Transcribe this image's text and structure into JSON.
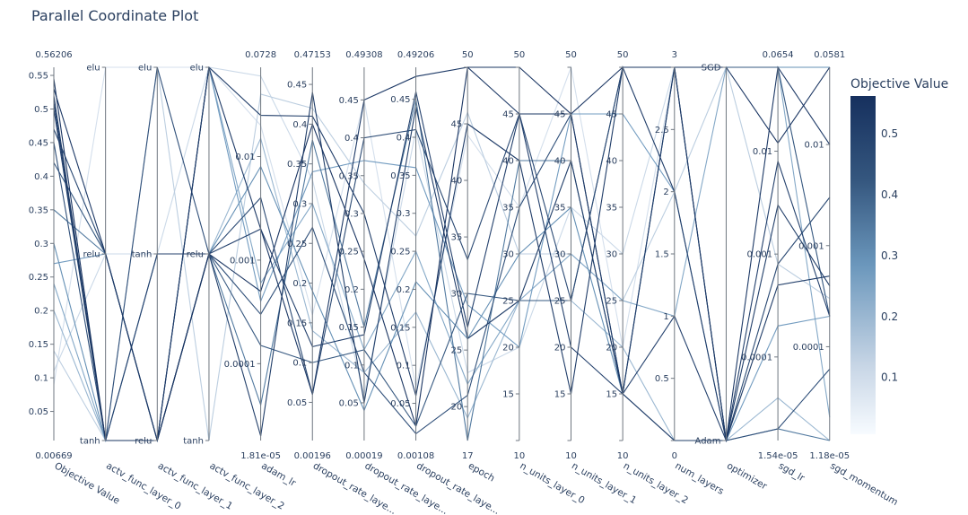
{
  "chart_data": {
    "type": "parallel_coordinates",
    "title": "Parallel Coordinate Plot",
    "colorbar": {
      "title": "Objective Value",
      "range": [
        0.00669,
        0.56206
      ],
      "ticks": [
        "0.1",
        "0.2",
        "0.3",
        "0.4",
        "0.5"
      ],
      "tick_values": [
        0.1,
        0.2,
        0.3,
        0.4,
        0.5
      ],
      "colors": [
        "#f7fbff",
        "#c8d6e6",
        "#6b97bc",
        "#35577f",
        "#16305e"
      ]
    },
    "axes": [
      {
        "label": "Objective Value",
        "kind": "linear",
        "min": 0.00669,
        "max": 0.56206,
        "min_label": "0.00669",
        "max_label": "0.56206",
        "ticks": [
          [
            0.05,
            "0.05"
          ],
          [
            0.1,
            "0.1"
          ],
          [
            0.15,
            "0.15"
          ],
          [
            0.2,
            "0.2"
          ],
          [
            0.25,
            "0.25"
          ],
          [
            0.3,
            "0.3"
          ],
          [
            0.35,
            "0.35"
          ],
          [
            0.4,
            "0.4"
          ],
          [
            0.45,
            "0.45"
          ],
          [
            0.5,
            "0.5"
          ],
          [
            0.55,
            "0.55"
          ]
        ]
      },
      {
        "label": "actv_func_layer_0",
        "kind": "categorical",
        "min": 0,
        "max": 2,
        "ticks": [
          [
            0,
            "tanh"
          ],
          [
            1,
            "relu"
          ],
          [
            2,
            "elu"
          ]
        ]
      },
      {
        "label": "actv_func_layer_1",
        "kind": "categorical",
        "min": 0,
        "max": 2,
        "ticks": [
          [
            0,
            "relu"
          ],
          [
            1,
            "tanh"
          ],
          [
            2,
            "elu"
          ]
        ]
      },
      {
        "label": "actv_func_layer_2",
        "kind": "categorical",
        "min": 0,
        "max": 2,
        "ticks": [
          [
            0,
            "tanh"
          ],
          [
            1,
            "relu"
          ],
          [
            2,
            "elu"
          ]
        ]
      },
      {
        "label": "adam_lr",
        "kind": "log",
        "min": 1.81e-05,
        "max": 0.0728,
        "min_label": "1.81e-05",
        "max_label": "0.0728",
        "ticks": [
          [
            0.0001,
            "0.0001"
          ],
          [
            0.001,
            "0.001"
          ],
          [
            0.01,
            "0.01"
          ]
        ]
      },
      {
        "label": "dropout_rate_laye...",
        "kind": "linear",
        "min": 0.00196,
        "max": 0.47153,
        "min_label": "0.00196",
        "max_label": "0.47153",
        "ticks": [
          [
            0.05,
            "0.05"
          ],
          [
            0.1,
            "0.1"
          ],
          [
            0.15,
            "0.15"
          ],
          [
            0.2,
            "0.2"
          ],
          [
            0.25,
            "0.25"
          ],
          [
            0.3,
            "0.3"
          ],
          [
            0.35,
            "0.35"
          ],
          [
            0.4,
            "0.4"
          ],
          [
            0.45,
            "0.45"
          ]
        ]
      },
      {
        "label": "dropout_rate_laye...",
        "kind": "linear",
        "min": 0.00019,
        "max": 0.49308,
        "min_label": "0.00019",
        "max_label": "0.49308",
        "ticks": [
          [
            0.05,
            "0.05"
          ],
          [
            0.1,
            "0.1"
          ],
          [
            0.15,
            "0.15"
          ],
          [
            0.2,
            "0.2"
          ],
          [
            0.25,
            "0.25"
          ],
          [
            0.3,
            "0.3"
          ],
          [
            0.35,
            "0.35"
          ],
          [
            0.4,
            "0.4"
          ],
          [
            0.45,
            "0.45"
          ]
        ]
      },
      {
        "label": "dropout_rate_laye...",
        "kind": "linear",
        "min": 0.00108,
        "max": 0.49206,
        "min_label": "0.00108",
        "max_label": "0.49206",
        "ticks": [
          [
            0.05,
            "0.05"
          ],
          [
            0.1,
            "0.1"
          ],
          [
            0.15,
            "0.15"
          ],
          [
            0.2,
            "0.2"
          ],
          [
            0.25,
            "0.25"
          ],
          [
            0.3,
            "0.3"
          ],
          [
            0.35,
            "0.35"
          ],
          [
            0.4,
            "0.4"
          ],
          [
            0.45,
            "0.45"
          ]
        ]
      },
      {
        "label": "epoch",
        "kind": "linear",
        "min": 17,
        "max": 50,
        "min_label": "17",
        "max_label": "50",
        "ticks": [
          [
            20,
            "20"
          ],
          [
            25,
            "25"
          ],
          [
            30,
            "30"
          ],
          [
            35,
            "35"
          ],
          [
            40,
            "40"
          ],
          [
            45,
            "45"
          ],
          [
            50,
            "50"
          ]
        ]
      },
      {
        "label": "n_units_layer_0",
        "kind": "linear",
        "min": 10,
        "max": 50,
        "min_label": "10",
        "max_label": "50",
        "ticks": [
          [
            10,
            "10"
          ],
          [
            15,
            "15"
          ],
          [
            20,
            "20"
          ],
          [
            25,
            "25"
          ],
          [
            30,
            "30"
          ],
          [
            35,
            "35"
          ],
          [
            40,
            "40"
          ],
          [
            45,
            "45"
          ],
          [
            50,
            "50"
          ]
        ]
      },
      {
        "label": "n_units_layer_1",
        "kind": "linear",
        "min": 10,
        "max": 50,
        "min_label": "10",
        "max_label": "50",
        "ticks": [
          [
            10,
            "10"
          ],
          [
            15,
            "15"
          ],
          [
            20,
            "20"
          ],
          [
            25,
            "25"
          ],
          [
            30,
            "30"
          ],
          [
            35,
            "35"
          ],
          [
            40,
            "40"
          ],
          [
            45,
            "45"
          ],
          [
            50,
            "50"
          ]
        ]
      },
      {
        "label": "n_units_layer_2",
        "kind": "linear",
        "min": 10,
        "max": 50,
        "min_label": "10",
        "max_label": "50",
        "ticks": [
          [
            10,
            "10"
          ],
          [
            15,
            "15"
          ],
          [
            20,
            "20"
          ],
          [
            25,
            "25"
          ],
          [
            30,
            "30"
          ],
          [
            35,
            "35"
          ],
          [
            40,
            "40"
          ],
          [
            45,
            "45"
          ],
          [
            50,
            "50"
          ]
        ]
      },
      {
        "label": "num_layers",
        "kind": "linear",
        "min": 0,
        "max": 3,
        "min_label": "0",
        "max_label": "3",
        "ticks": [
          [
            0,
            "0"
          ],
          [
            0.5,
            "0.5"
          ],
          [
            1,
            "1"
          ],
          [
            1.5,
            "1.5"
          ],
          [
            2,
            "2"
          ],
          [
            2.5,
            "2.5"
          ],
          [
            3,
            "3"
          ]
        ]
      },
      {
        "label": "optimizer",
        "kind": "categorical",
        "min": 0,
        "max": 1,
        "ticks": [
          [
            0,
            "Adam"
          ],
          [
            1,
            "SGD"
          ]
        ]
      },
      {
        "label": "sgd_lr",
        "kind": "log",
        "min": 1.54e-05,
        "max": 0.0654,
        "min_label": "1.54e-05",
        "max_label": "0.0654",
        "ticks": [
          [
            0.0001,
            "0.0001"
          ],
          [
            0.001,
            "0.001"
          ],
          [
            0.01,
            "0.01"
          ]
        ]
      },
      {
        "label": "sgd_momentum",
        "kind": "log",
        "min": 1.18e-05,
        "max": 0.0581,
        "min_label": "1.18e-05",
        "max_label": "0.0581",
        "ticks": [
          [
            0.0001,
            "0.0001"
          ],
          [
            0.001,
            "0.001"
          ],
          [
            0.01,
            "0.01"
          ]
        ]
      }
    ],
    "lines": [
      [
        0.545,
        0,
        0,
        1,
        0.0005,
        0.4,
        0.24,
        0.02,
        50,
        50,
        45,
        50,
        3,
        1,
        0.012,
        0.0581
      ],
      [
        0.53,
        1,
        0,
        2,
        0.002,
        0.06,
        0.45,
        0.48,
        50,
        45,
        45,
        15,
        3,
        0,
        0.0654,
        0.01
      ],
      [
        0.52,
        0,
        0,
        2,
        0.025,
        0.41,
        0.3,
        0.06,
        45,
        40,
        15,
        50,
        2,
        0,
        0.0005,
        0.0005
      ],
      [
        0.51,
        0,
        0,
        1,
        2e-05,
        0.44,
        0.05,
        0.44,
        26,
        25,
        40,
        15,
        0,
        0,
        0.003,
        0.0004
      ],
      [
        0.5,
        0,
        1,
        1,
        0.002,
        0.12,
        0.14,
        0.46,
        27,
        45,
        20,
        15,
        1,
        0,
        0.008,
        0.0002
      ],
      [
        0.47,
        1,
        0,
        1,
        0.004,
        0.06,
        0.4,
        0.41,
        33,
        45,
        25,
        50,
        3,
        0,
        0.0008,
        0.003
      ],
      [
        0.45,
        0,
        2,
        1,
        0.0003,
        0.27,
        0.09,
        0.01,
        21,
        35,
        45,
        15,
        0,
        0,
        2e-05,
        6e-05
      ],
      [
        0.42,
        1,
        0,
        1,
        0.00015,
        0.1,
        0.12,
        0.02,
        30,
        25,
        25,
        50,
        3,
        1,
        0.0654,
        0.0002
      ],
      [
        0.35,
        1,
        0,
        1,
        4e-05,
        0.38,
        0.15,
        0.45,
        17,
        40,
        40,
        15,
        3,
        0,
        2e-05,
        1e-05
      ],
      [
        0.3,
        0,
        1,
        1,
        0.008,
        0.19,
        0.04,
        0.21,
        26,
        30,
        35,
        15,
        3,
        1,
        0.0654,
        0.0581
      ],
      [
        0.27,
        1,
        0,
        2,
        0.0004,
        0.34,
        0.37,
        0.36,
        29,
        20,
        45,
        45,
        2,
        0,
        0.0002,
        0.0002
      ],
      [
        0.24,
        0,
        0,
        2,
        0.0006,
        0.3,
        0.12,
        0.25,
        22,
        25,
        30,
        25,
        1,
        1,
        0.0654,
        2e-05
      ],
      [
        0.2,
        0,
        1,
        1,
        0.015,
        0.14,
        0.09,
        0.17,
        19,
        25,
        25,
        20,
        0,
        0,
        4e-05,
        1e-05
      ],
      [
        0.14,
        0,
        2,
        0,
        0.04,
        0.42,
        0.34,
        0.27,
        46,
        30,
        30,
        25,
        2,
        1,
        0.0008,
        0.0003
      ],
      [
        0.11,
        1,
        1,
        2,
        0.06,
        0.33,
        0.06,
        0.41,
        23,
        20,
        35,
        30,
        3,
        1,
        0.0654,
        0.0581
      ],
      [
        0.09,
        2,
        2,
        2,
        0.02,
        0.16,
        0.45,
        0.07,
        44,
        35,
        50,
        20,
        3,
        1,
        0.0654,
        0.0581
      ]
    ]
  }
}
